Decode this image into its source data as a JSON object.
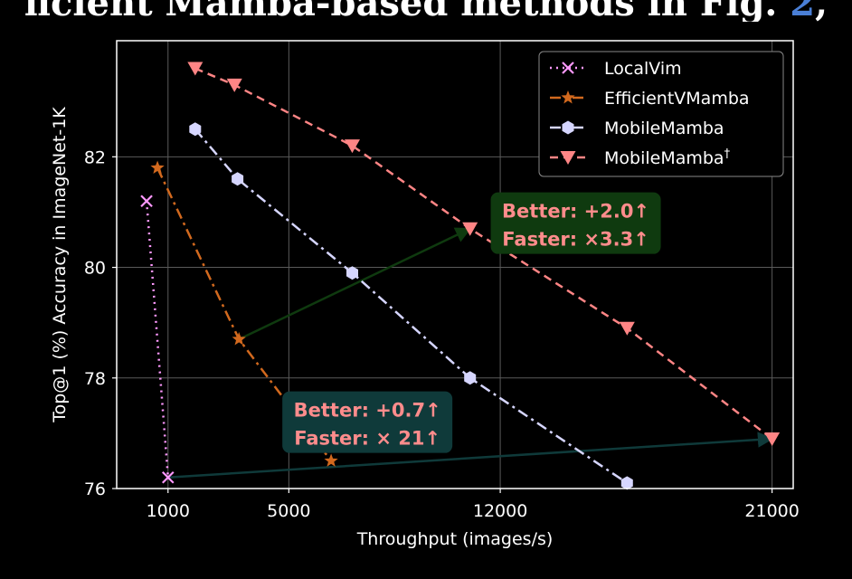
{
  "header_text": {
    "prefix": "ficient Mamba-based methods in Fig.",
    "ref": "2",
    "suffix": ","
  },
  "chart_data": {
    "type": "line",
    "xlabel": "Throughput (images/s)",
    "ylabel": "Top@1 (%) Accuracy in ImageNet-1K",
    "xticks": [
      1000,
      5000,
      12000,
      21000
    ],
    "xtick_labels": [
      "1000",
      "5000",
      "12000",
      "21000"
    ],
    "yticks": [
      76,
      78,
      80,
      82
    ],
    "ytick_labels": [
      "76",
      "78",
      "80",
      "82"
    ],
    "xlim": [
      -700,
      21700
    ],
    "ylim": [
      76,
      84.1
    ],
    "grid": true,
    "legend_position": "top-right",
    "series": [
      {
        "name": "LocalVim",
        "color": "#ff99ff",
        "marker": "x",
        "dash": "dotted",
        "points": [
          [
            290,
            81.2
          ],
          [
            1000,
            76.2
          ]
        ]
      },
      {
        "name": "EfficientVMamba",
        "color": "#d2691e",
        "marker": "star",
        "dash": "dashdot",
        "points": [
          [
            650,
            81.8
          ],
          [
            3350,
            78.7
          ],
          [
            6400,
            76.5
          ]
        ]
      },
      {
        "name": "MobileMamba",
        "color": "#d6d6ff",
        "marker": "hexagon",
        "dash": "dashdot",
        "points": [
          [
            1900,
            82.5
          ],
          [
            3300,
            81.6
          ],
          [
            7100,
            79.9
          ],
          [
            11000,
            78.0
          ],
          [
            16200,
            76.1
          ]
        ]
      },
      {
        "name": "MobileMamba",
        "superscript": "†",
        "color": "#ff8585",
        "marker": "triangle-down",
        "dash": "dashed",
        "points": [
          [
            1900,
            83.6
          ],
          [
            3200,
            83.3
          ],
          [
            7100,
            82.2
          ],
          [
            11000,
            80.7
          ],
          [
            16200,
            78.9
          ],
          [
            21000,
            76.9
          ]
        ]
      }
    ],
    "annotations": [
      {
        "line1": "Better: +2.0↑",
        "line2": "Faster: ×3.3↑",
        "box_color": "#0f3a0f",
        "text_color": "#ff8c8c",
        "arrow_color": "#0f3a0f",
        "arrow_from": [
          3350,
          78.7
        ],
        "arrow_to": [
          11000,
          80.7
        ],
        "center": [
          14500,
          80.8
        ]
      },
      {
        "line1": "Better: +0.7↑",
        "line2": "Faster: × 21↑",
        "box_color": "#0f3a3a",
        "text_color": "#ff8c8c",
        "arrow_color": "#0f3a3a",
        "arrow_from": [
          1000,
          76.2
        ],
        "arrow_to": [
          21000,
          76.9
        ],
        "center": [
          7600,
          77.2
        ]
      }
    ]
  }
}
